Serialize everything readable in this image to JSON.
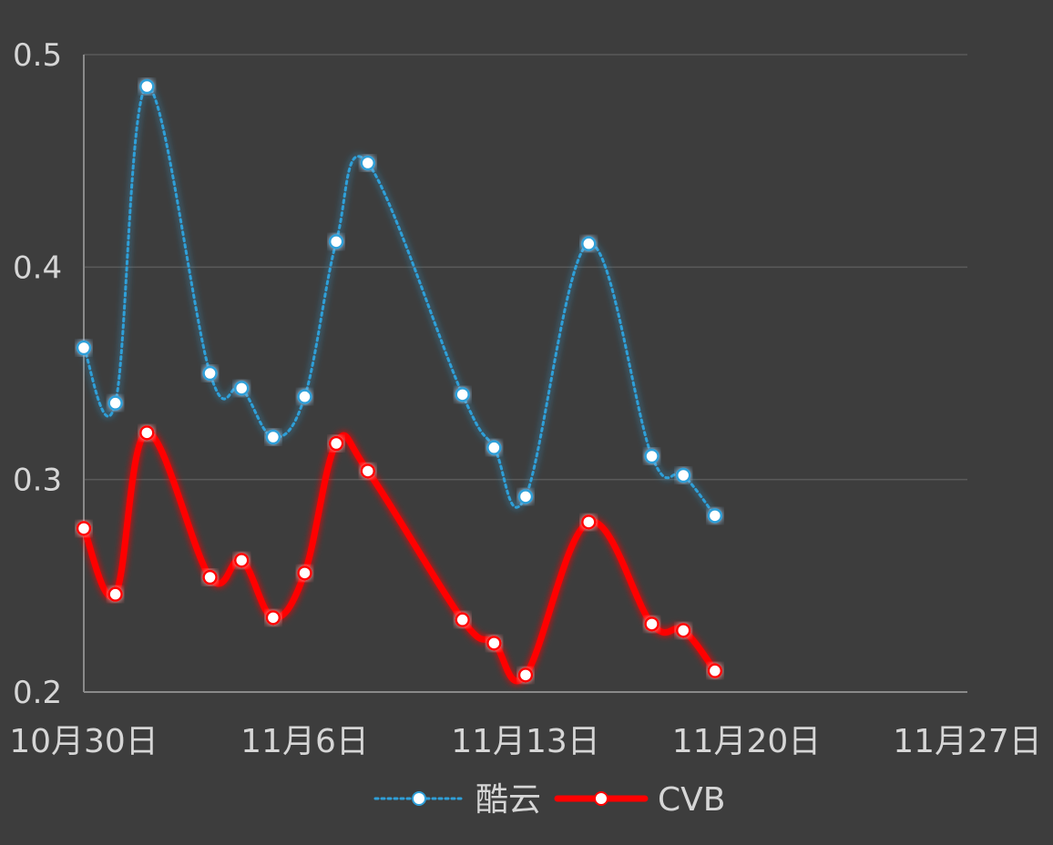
{
  "chart_data": {
    "type": "line",
    "x_type": "date",
    "ylim": [
      0.2,
      0.5
    ],
    "y_ticks": [
      "0.2",
      "0.3",
      "0.4",
      "0.5"
    ],
    "xlim": [
      "10-30",
      "11-27"
    ],
    "x_ticks": [
      {
        "date": "10-30",
        "label": "10月30日"
      },
      {
        "date": "11-06",
        "label": "11月6日"
      },
      {
        "date": "11-13",
        "label": "11月13日"
      },
      {
        "date": "11-20",
        "label": "11月20日"
      },
      {
        "date": "11-27",
        "label": "11月27日"
      }
    ],
    "grid": true,
    "legend": "bottom",
    "series": [
      {
        "name": "酷云",
        "color": "#2f9fd8",
        "style": "dotted",
        "points": [
          {
            "x": "10-30",
            "y": 0.362
          },
          {
            "x": "10-31",
            "y": 0.336
          },
          {
            "x": "11-01",
            "y": 0.485
          },
          {
            "x": "11-03",
            "y": 0.35
          },
          {
            "x": "11-04",
            "y": 0.343
          },
          {
            "x": "11-05",
            "y": 0.32
          },
          {
            "x": "11-06",
            "y": 0.339
          },
          {
            "x": "11-07",
            "y": 0.412
          },
          {
            "x": "11-08",
            "y": 0.449
          },
          {
            "x": "11-11",
            "y": 0.34
          },
          {
            "x": "11-12",
            "y": 0.315
          },
          {
            "x": "11-13",
            "y": 0.292
          },
          {
            "x": "11-15",
            "y": 0.411
          },
          {
            "x": "11-17",
            "y": 0.311
          },
          {
            "x": "11-18",
            "y": 0.302
          },
          {
            "x": "11-19",
            "y": 0.283
          }
        ]
      },
      {
        "name": "CVB",
        "color": "#ff0000",
        "style": "solid",
        "points": [
          {
            "x": "10-30",
            "y": 0.277
          },
          {
            "x": "10-31",
            "y": 0.246
          },
          {
            "x": "11-01",
            "y": 0.322
          },
          {
            "x": "11-03",
            "y": 0.254
          },
          {
            "x": "11-04",
            "y": 0.262
          },
          {
            "x": "11-05",
            "y": 0.235
          },
          {
            "x": "11-06",
            "y": 0.256
          },
          {
            "x": "11-07",
            "y": 0.317
          },
          {
            "x": "11-08",
            "y": 0.304
          },
          {
            "x": "11-11",
            "y": 0.234
          },
          {
            "x": "11-12",
            "y": 0.223
          },
          {
            "x": "11-13",
            "y": 0.208
          },
          {
            "x": "11-15",
            "y": 0.28
          },
          {
            "x": "11-17",
            "y": 0.232
          },
          {
            "x": "11-18",
            "y": 0.229
          },
          {
            "x": "11-19",
            "y": 0.21
          }
        ]
      }
    ]
  }
}
